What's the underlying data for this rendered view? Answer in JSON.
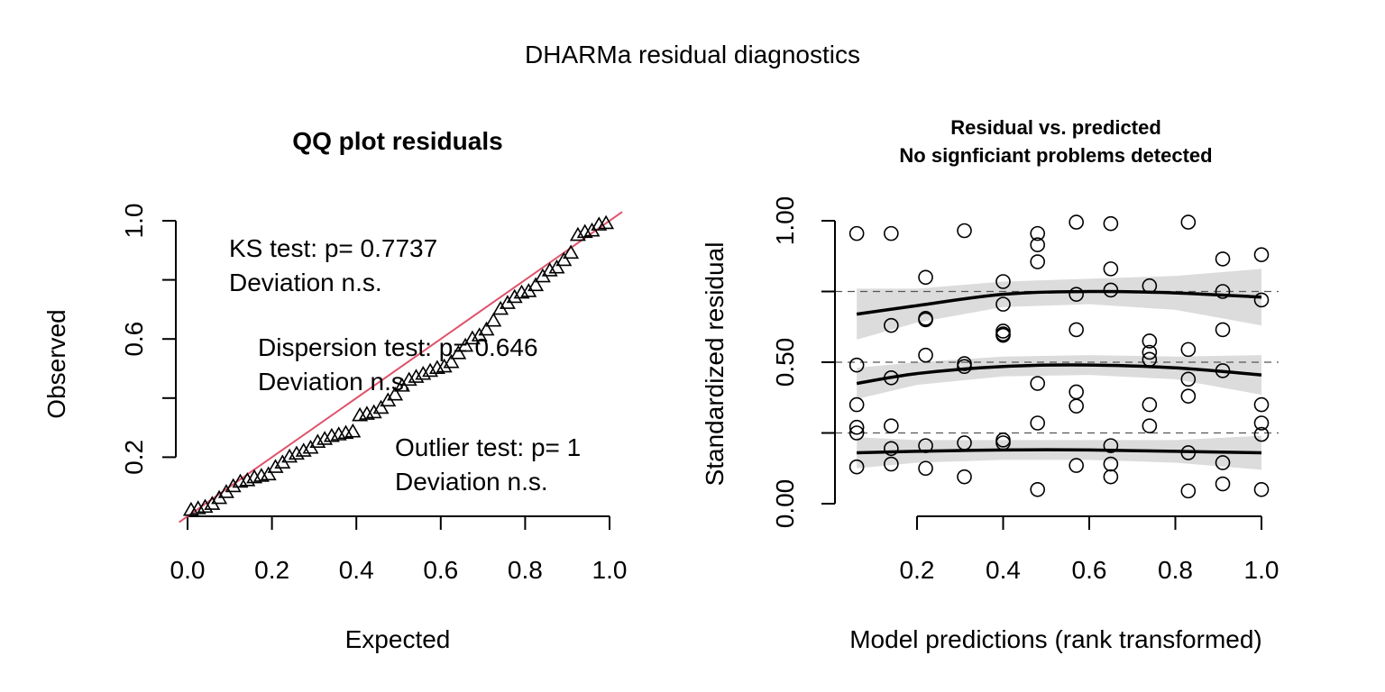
{
  "figure_title": "DHARMa residual diagnostics",
  "chart_data": [
    {
      "type": "scatter",
      "title": "QQ plot residuals",
      "xlabel": "Expected",
      "ylabel": "Observed",
      "xlim": [
        0,
        1
      ],
      "ylim": [
        0,
        1
      ],
      "xticks": [
        "0.0",
        "0.2",
        "0.4",
        "0.6",
        "0.8",
        "1.0"
      ],
      "yticks": [
        "0.2",
        "0.6",
        "1.0"
      ],
      "reference_line": {
        "intercept": 0,
        "slope": 1,
        "color": "#DF536B"
      },
      "marker": "triangle",
      "observed": [
        0.02,
        0.025,
        0.03,
        0.04,
        0.06,
        0.08,
        0.1,
        0.115,
        0.12,
        0.13,
        0.135,
        0.14,
        0.165,
        0.18,
        0.2,
        0.21,
        0.22,
        0.23,
        0.25,
        0.26,
        0.27,
        0.275,
        0.28,
        0.285,
        0.34,
        0.345,
        0.35,
        0.365,
        0.39,
        0.41,
        0.44,
        0.46,
        0.47,
        0.48,
        0.49,
        0.5,
        0.505,
        0.52,
        0.55,
        0.575,
        0.6,
        0.61,
        0.63,
        0.66,
        0.7,
        0.72,
        0.74,
        0.755,
        0.76,
        0.78,
        0.81,
        0.83,
        0.84,
        0.865,
        0.89,
        0.95,
        0.96,
        0.965,
        0.985,
        0.99
      ],
      "annotations": [
        {
          "lines": [
            "KS test: p= 0.7737",
            "Deviation  n.s."
          ]
        },
        {
          "lines": [
            "Dispersion test: p= 0.646",
            "Deviation  n.s."
          ]
        },
        {
          "lines": [
            "Outlier test: p= 1",
            "Deviation  n.s."
          ]
        }
      ]
    },
    {
      "type": "scatter",
      "title": "Residual vs. predicted",
      "subtitle": "No signficiant problems detected",
      "xlabel": "Model predictions (rank transformed)",
      "ylabel": "Standardized residual",
      "xlim": [
        0,
        1
      ],
      "ylim": [
        0,
        1
      ],
      "xticks": [
        "0.2",
        "0.4",
        "0.6",
        "0.8",
        "1.0"
      ],
      "yticks": [
        "0.00",
        "0.50",
        "1.00"
      ],
      "marker": "circle",
      "hlines": [
        0.25,
        0.5,
        0.75
      ],
      "points": [
        [
          0.06,
          0.955
        ],
        [
          0.06,
          0.49
        ],
        [
          0.06,
          0.35
        ],
        [
          0.06,
          0.27
        ],
        [
          0.06,
          0.25
        ],
        [
          0.06,
          0.13
        ],
        [
          0.14,
          0.955
        ],
        [
          0.14,
          0.63
        ],
        [
          0.14,
          0.445
        ],
        [
          0.14,
          0.275
        ],
        [
          0.14,
          0.195
        ],
        [
          0.14,
          0.14
        ],
        [
          0.22,
          0.8
        ],
        [
          0.22,
          0.655
        ],
        [
          0.22,
          0.65
        ],
        [
          0.22,
          0.525
        ],
        [
          0.22,
          0.205
        ],
        [
          0.22,
          0.125
        ],
        [
          0.31,
          0.965
        ],
        [
          0.31,
          0.495
        ],
        [
          0.31,
          0.485
        ],
        [
          0.31,
          0.215
        ],
        [
          0.31,
          0.095
        ],
        [
          0.4,
          0.785
        ],
        [
          0.4,
          0.705
        ],
        [
          0.4,
          0.61
        ],
        [
          0.4,
          0.6
        ],
        [
          0.4,
          0.595
        ],
        [
          0.4,
          0.225
        ],
        [
          0.4,
          0.215
        ],
        [
          0.48,
          0.955
        ],
        [
          0.48,
          0.915
        ],
        [
          0.48,
          0.855
        ],
        [
          0.48,
          0.425
        ],
        [
          0.48,
          0.285
        ],
        [
          0.48,
          0.05
        ],
        [
          0.57,
          0.995
        ],
        [
          0.57,
          0.74
        ],
        [
          0.57,
          0.615
        ],
        [
          0.57,
          0.395
        ],
        [
          0.57,
          0.345
        ],
        [
          0.57,
          0.135
        ],
        [
          0.65,
          0.99
        ],
        [
          0.65,
          0.83
        ],
        [
          0.65,
          0.755
        ],
        [
          0.65,
          0.205
        ],
        [
          0.65,
          0.14
        ],
        [
          0.65,
          0.095
        ],
        [
          0.74,
          0.77
        ],
        [
          0.74,
          0.575
        ],
        [
          0.74,
          0.535
        ],
        [
          0.74,
          0.51
        ],
        [
          0.74,
          0.35
        ],
        [
          0.74,
          0.275
        ],
        [
          0.83,
          0.995
        ],
        [
          0.83,
          0.545
        ],
        [
          0.83,
          0.44
        ],
        [
          0.83,
          0.38
        ],
        [
          0.83,
          0.18
        ],
        [
          0.83,
          0.045
        ],
        [
          0.91,
          0.865
        ],
        [
          0.91,
          0.75
        ],
        [
          0.91,
          0.615
        ],
        [
          0.91,
          0.47
        ],
        [
          0.91,
          0.145
        ],
        [
          0.91,
          0.07
        ],
        [
          1.0,
          0.88
        ],
        [
          1.0,
          0.72
        ],
        [
          1.0,
          0.35
        ],
        [
          1.0,
          0.285
        ],
        [
          1.0,
          0.245
        ],
        [
          1.0,
          0.05
        ]
      ],
      "quantile_fits": [
        {
          "quantile": 0.75,
          "x": [
            0.06,
            0.2,
            0.4,
            0.6,
            0.8,
            1.0
          ],
          "y": [
            0.67,
            0.7,
            0.74,
            0.75,
            0.745,
            0.73
          ],
          "band_halfwidth": [
            0.09,
            0.06,
            0.045,
            0.045,
            0.06,
            0.1
          ]
        },
        {
          "quantile": 0.5,
          "x": [
            0.06,
            0.2,
            0.4,
            0.6,
            0.8,
            1.0
          ],
          "y": [
            0.425,
            0.46,
            0.485,
            0.49,
            0.48,
            0.455
          ],
          "band_halfwidth": [
            0.055,
            0.04,
            0.035,
            0.035,
            0.04,
            0.07
          ]
        },
        {
          "quantile": 0.25,
          "x": [
            0.06,
            0.2,
            0.4,
            0.6,
            0.8,
            1.0
          ],
          "y": [
            0.18,
            0.185,
            0.19,
            0.19,
            0.185,
            0.18
          ],
          "band_halfwidth": [
            0.055,
            0.04,
            0.035,
            0.035,
            0.04,
            0.06
          ]
        }
      ]
    }
  ]
}
